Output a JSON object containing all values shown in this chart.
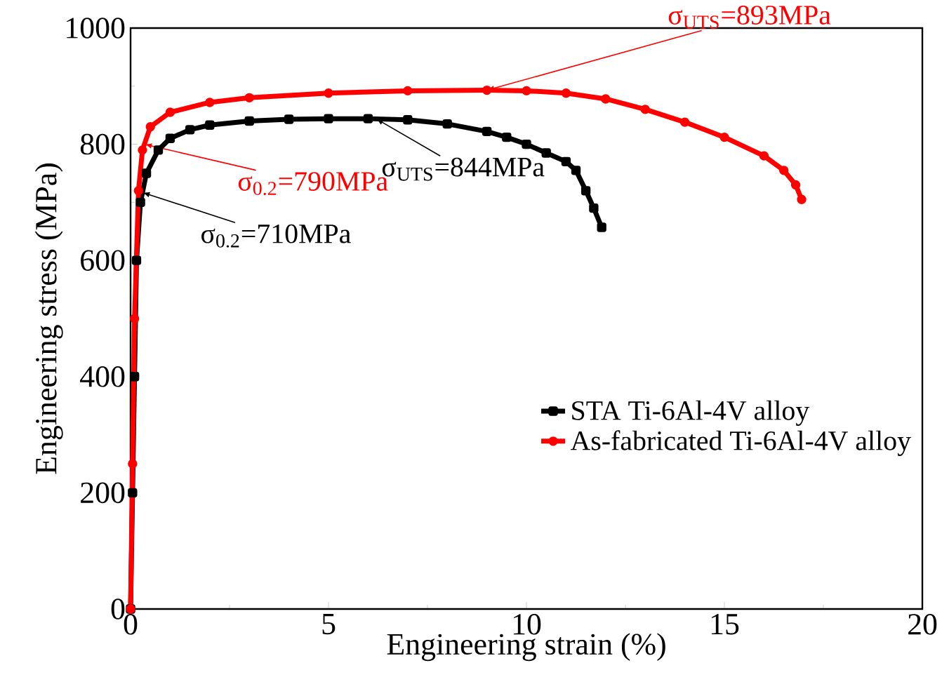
{
  "chart_data": {
    "type": "line",
    "xlabel": "Engineering strain (%)",
    "ylabel": "Engineering stress (MPa)",
    "xlim": [
      0,
      20
    ],
    "xticks": [
      0,
      5,
      10,
      15,
      20
    ],
    "ylim": [
      0,
      1000
    ],
    "yticks": [
      0,
      200,
      400,
      600,
      800,
      1000
    ],
    "grid": false,
    "legend": "bottom right",
    "series": [
      {
        "name": "STA Ti-6Al-4V alloy",
        "color": "#000000",
        "marker": "square",
        "x": [
          0,
          0.05,
          0.1,
          0.15,
          0.25,
          0.4,
          0.7,
          1,
          1.5,
          2,
          3,
          4,
          5,
          6,
          7,
          8,
          9,
          9.5,
          10,
          10.5,
          11,
          11.25,
          11.5,
          11.7,
          11.9
        ],
        "values": [
          0,
          200,
          400,
          600,
          700,
          750,
          790,
          810,
          825,
          833,
          840,
          843,
          844,
          844,
          842,
          835,
          822,
          812,
          800,
          785,
          770,
          755,
          720,
          690,
          657
        ]
      },
      {
        "name": "As-fabricated Ti-6Al-4V alloy",
        "color": "#ff0000",
        "marker": "circle",
        "x": [
          0,
          0.05,
          0.1,
          0.2,
          0.3,
          0.5,
          1,
          2,
          3,
          5,
          7,
          9,
          10,
          11,
          12,
          13,
          14,
          15,
          16,
          16.5,
          16.8,
          16.95
        ],
        "values": [
          0,
          250,
          500,
          720,
          790,
          830,
          855,
          872,
          880,
          888,
          892,
          893,
          892,
          888,
          878,
          860,
          838,
          812,
          780,
          755,
          730,
          705
        ]
      }
    ],
    "annotations": [
      {
        "text": "σ$_{0.2}$=790MPa",
        "x": 0.35,
        "y": 800
      },
      {
        "text": "σ$_{0.2}$=710MPa",
        "x": 0.3,
        "y": 717
      },
      {
        "text": "σ$_{UTS}$=844MPa",
        "x": 6.2,
        "y": 844
      },
      {
        "text": "σ$_{UTS}$=893MPa",
        "x": 9.0,
        "y": 893
      }
    ]
  }
}
